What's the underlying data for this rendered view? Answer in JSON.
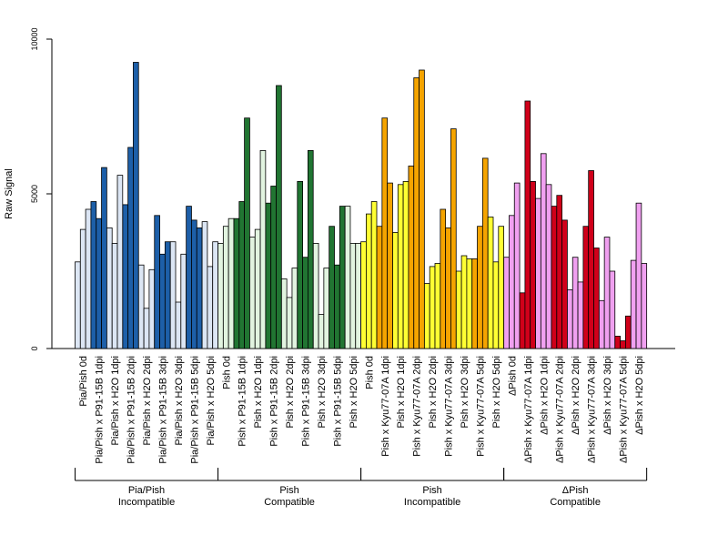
{
  "chart_data": {
    "type": "bar",
    "ylabel": "Raw Signal",
    "xlabel": "",
    "title": "",
    "ylim": [
      0,
      10000
    ],
    "yticks": [
      0,
      5000,
      10000
    ],
    "grid": false,
    "replicates": 3,
    "categories": [
      "Pia/Pish 0d",
      "Pia/Pish x P91-15B 1dpi",
      "Pia/Pish x H2O 1dpi",
      "Pia/Pish x P91-15B 2dpi",
      "Pia/Pish x H2O 2dpi",
      "Pia/Pish x P91-15B 3dpi",
      "Pia/Pish x H2O 3dpi",
      "Pia/Pish x P91-15B 5dpi",
      "Pia/Pish x H2O 5dpi",
      "Pish 0d",
      "Pish x P91-15B 1dpi",
      "Pish x H2O 1dpi",
      "Pish x P91-15B 2dpi",
      "Pish x H2O 2dpi",
      "Pish x P91-15B 3dpi",
      "Pish x H2O 3dpi",
      "Pish x P91-15B 5dpi",
      "Pish x H2O 5dpi",
      "Pish 0d",
      "Pish x Kyu77-07A 1dpi",
      "Pish x H2O 1dpi",
      "Pish x Kyu77-07A 2dpi",
      "Pish x H2O 2dpi",
      "Pish x Kyu77-07A 3dpi",
      "Pish x H2O 3dpi",
      "Pish x Kyu77-07A 5dpi",
      "Pish x H2O 5dpi",
      "ΔPish 0d",
      "ΔPish x Kyu77-07A 1dpi",
      "ΔPish x H2O 1dpi",
      "ΔPish x Kyu77-07A 2dpi",
      "ΔPish x H2O 2dpi",
      "ΔPish x Kyu77-07A 3dpi",
      "ΔPish x H2O 3dpi",
      "ΔPish x Kyu77-07A 5dpi",
      "ΔPish x H2O 5dpi"
    ],
    "values": [
      [
        2800,
        3850,
        4500
      ],
      [
        4750,
        4200,
        5850
      ],
      [
        3900,
        3400,
        5600
      ],
      [
        4650,
        6500,
        9250
      ],
      [
        2700,
        1300,
        2550
      ],
      [
        4300,
        3050,
        3450
      ],
      [
        3450,
        1500,
        3050
      ],
      [
        4600,
        4150,
        3900
      ],
      [
        4100,
        2650,
        3450
      ],
      [
        3400,
        3950,
        4200
      ],
      [
        4200,
        4750,
        7450
      ],
      [
        3600,
        3850,
        6400
      ],
      [
        4700,
        5250,
        8500
      ],
      [
        2250,
        1650,
        2600
      ],
      [
        5400,
        2950,
        6400
      ],
      [
        3400,
        1100,
        2600
      ],
      [
        3950,
        2700,
        4600
      ],
      [
        4600,
        3400,
        3400
      ],
      [
        3450,
        4350,
        4750
      ],
      [
        3950,
        7450,
        5350
      ],
      [
        3750,
        5300,
        5400
      ],
      [
        5900,
        8750,
        9000
      ],
      [
        2100,
        2650,
        2750
      ],
      [
        4500,
        3900,
        7100
      ],
      [
        2500,
        3000,
        2900
      ],
      [
        2900,
        3950,
        6150
      ],
      [
        4250,
        2800,
        3950
      ],
      [
        2950,
        4300,
        5350
      ],
      [
        1800,
        8000,
        5400
      ],
      [
        4850,
        6300,
        5300
      ],
      [
        4600,
        4950,
        4150
      ],
      [
        1900,
        2950,
        2150
      ],
      [
        3950,
        5750,
        3250
      ],
      [
        1550,
        3600,
        2500
      ],
      [
        400,
        250,
        1050
      ],
      [
        2850,
        4700,
        2750
      ]
    ],
    "groups": [
      {
        "label_line1": "Pia/Pish",
        "label_line2": "Incompatible",
        "start": 0,
        "end": 8,
        "color_light": "#dce6f4",
        "color_dark": "#1d5fa8"
      },
      {
        "label_line1": "Pish",
        "label_line2": "Compatible",
        "start": 9,
        "end": 17,
        "color_light": "#e2f4e0",
        "color_dark": "#217532"
      },
      {
        "label_line1": "Pish",
        "label_line2": "Incompatible",
        "start": 18,
        "end": 26,
        "color_light": "#ffff33",
        "color_dark": "#f5a400"
      },
      {
        "label_line1": "ΔPish",
        "label_line2": "Compatible",
        "start": 27,
        "end": 35,
        "color_light": "#f0a0f0",
        "color_dark": "#d0001a"
      }
    ]
  }
}
